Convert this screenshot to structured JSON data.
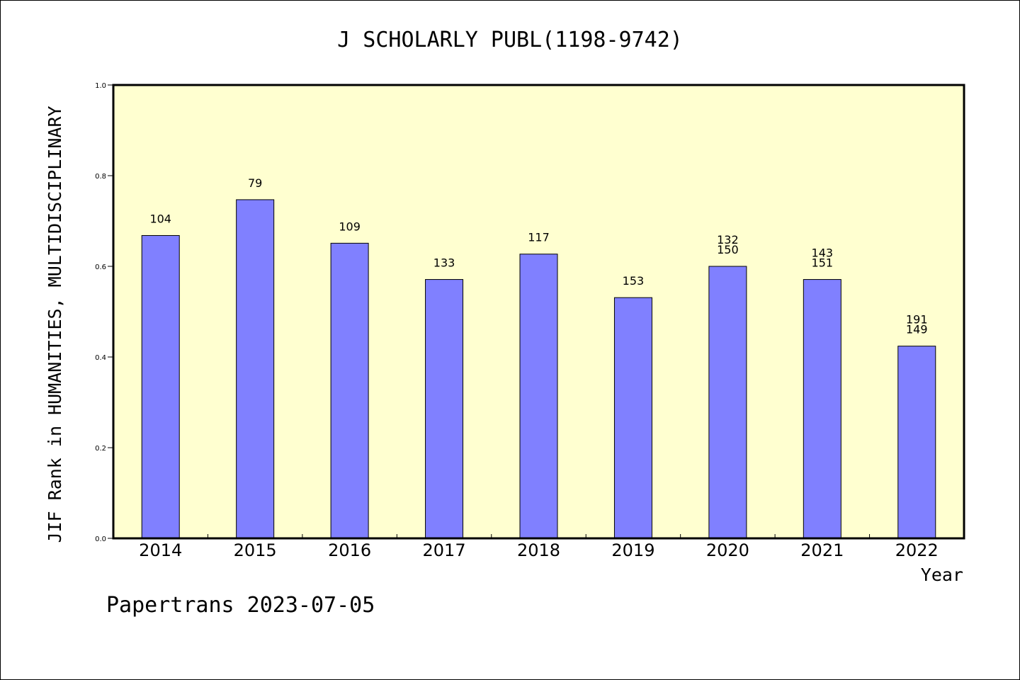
{
  "chart_data": {
    "type": "bar",
    "title": "J SCHOLARLY PUBL(1198-9742)",
    "xlabel": "Year",
    "ylabel": "JIF Rank in HUMANITIES, MULTIDISCIPLINARY",
    "ylim": [
      0,
      1.0
    ],
    "yticks": [
      "0.0",
      "0.2",
      "0.4",
      "0.6",
      "0.8",
      "1.0"
    ],
    "categories": [
      "2014",
      "2015",
      "2016",
      "2017",
      "2018",
      "2019",
      "2020",
      "2021",
      "2022"
    ],
    "values": [
      0.668,
      0.747,
      0.651,
      0.571,
      0.627,
      0.531,
      0.6,
      0.571,
      0.424
    ],
    "rank_labels": [
      [
        "104"
      ],
      [
        "79"
      ],
      [
        "109"
      ],
      [
        "133"
      ],
      [
        "117"
      ],
      [
        "153"
      ],
      [
        "132",
        "150"
      ],
      [
        "143",
        "151"
      ],
      [
        "191",
        "149"
      ]
    ],
    "colors": {
      "plot_bg": "#ffffd0",
      "bar": "#8080ff"
    },
    "grid": false
  },
  "footer": "Papertrans 2023-07-05"
}
